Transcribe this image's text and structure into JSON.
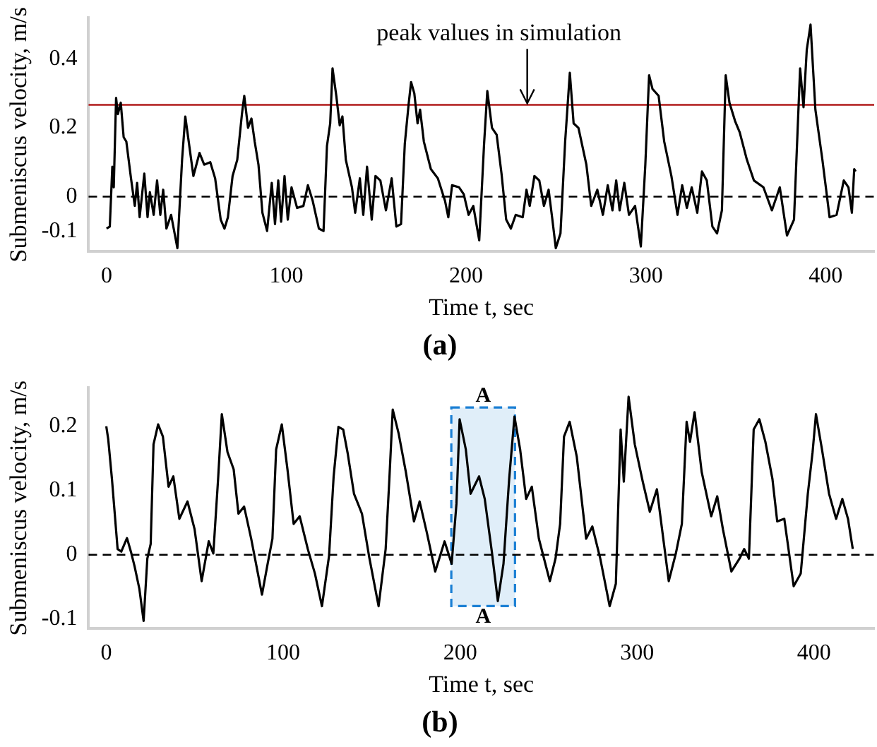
{
  "chart_data": [
    {
      "type": "line",
      "title": "(a)",
      "xlabel": "Time t, sec",
      "ylabel": "Submeniscus velocity, m/s",
      "xlim": [
        -10,
        427
      ],
      "xticks": [
        0,
        100,
        200,
        300,
        400
      ],
      "ylim": [
        -0.16,
        0.52
      ],
      "yticks": [
        -0.1,
        0,
        0.2,
        0.4
      ],
      "grid": false,
      "legend": false,
      "marker": "none",
      "line_style": "solid",
      "series": [
        {
          "color": "#000000",
          "x": [
            0,
            1.8,
            3.2,
            4,
            5.3,
            6.3,
            7.9,
            9.5,
            11,
            13.6,
            15.7,
            17,
            18.4,
            21,
            22.8,
            24.1,
            26.2,
            28.1,
            29.9,
            31.5,
            33.3,
            35.9,
            39.4,
            42,
            43.8,
            45.7,
            48.3,
            51.7,
            54.3,
            57.7,
            60.4,
            63.5,
            65.6,
            67.5,
            70.1,
            72.7,
            75.3,
            76.6,
            78.7,
            80.6,
            82.4,
            84.5,
            86.7,
            89.3,
            91.9,
            93.7,
            95.5,
            97.1,
            99,
            100.8,
            102.9,
            106,
            109.5,
            112,
            114.7,
            118.1,
            120.7,
            122.6,
            124.4,
            125.7,
            127.8,
            129.7,
            131.2,
            133.1,
            136.5,
            138.3,
            140.9,
            142.8,
            144.9,
            147.5,
            149.6,
            152.3,
            155.4,
            158.6,
            161.2,
            163.8,
            165.9,
            168,
            169.4,
            171.2,
            173,
            174.4,
            176.5,
            180.4,
            184.3,
            188.3,
            190.1,
            192.2,
            196.1,
            198.7,
            201.4,
            204,
            207.3,
            210,
            211.8,
            214.4,
            217,
            219.7,
            222.3,
            224.9,
            227.6,
            231.5,
            233.6,
            235.4,
            238,
            240.7,
            243.3,
            245.9,
            248,
            249.9,
            252.5,
            255.1,
            257.7,
            259.8,
            262.5,
            266.9,
            269.6,
            273,
            276.1,
            278.8,
            281.4,
            283.5,
            285.4,
            288,
            290.6,
            294,
            297.2,
            299.7,
            301.8,
            303.7,
            307.1,
            310.2,
            314.2,
            317.6,
            320.2,
            322.8,
            325.5,
            328.6,
            331.2,
            333.9,
            337,
            339.6,
            342.3,
            344.4,
            346.5,
            349.6,
            352.2,
            356.2,
            360.1,
            365.4,
            370.1,
            374.5,
            378.5,
            382.4,
            385.8,
            387.7,
            389.5,
            391.6,
            394.3,
            398.2,
            402.2,
            406.1,
            410.1,
            412.7,
            414.6,
            415.9,
            416.7
          ],
          "values": [
            -0.093,
            -0.087,
            0.087,
            0.027,
            0.287,
            0.24,
            0.273,
            0.173,
            0.16,
            0.053,
            -0.027,
            0.04,
            -0.06,
            0.067,
            -0.06,
            0.013,
            -0.053,
            0.047,
            -0.053,
            0.02,
            -0.093,
            -0.053,
            -0.15,
            0.107,
            0.233,
            0.16,
            0.06,
            0.127,
            0.093,
            0.1,
            0.053,
            -0.067,
            -0.093,
            -0.06,
            0.06,
            0.107,
            0.24,
            0.293,
            0.2,
            0.227,
            0.16,
            0.093,
            -0.047,
            -0.1,
            0.04,
            -0.08,
            0.047,
            -0.073,
            0.06,
            -0.067,
            0.027,
            -0.033,
            -0.027,
            0.033,
            -0.013,
            -0.093,
            -0.1,
            0.147,
            0.213,
            0.373,
            0.293,
            0.207,
            0.233,
            0.107,
            0.027,
            -0.047,
            0.053,
            -0.053,
            0.087,
            -0.067,
            0.06,
            0.047,
            -0.04,
            0.053,
            -0.087,
            -0.08,
            0.153,
            0.267,
            0.333,
            0.3,
            0.213,
            0.253,
            0.16,
            0.08,
            0.053,
            -0.013,
            -0.06,
            0.033,
            0.027,
            0.007,
            -0.053,
            -0.027,
            -0.127,
            0.153,
            0.307,
            0.2,
            0.18,
            0.067,
            -0.067,
            -0.093,
            -0.053,
            -0.06,
            0.02,
            -0.027,
            0.06,
            0.047,
            -0.027,
            0.02,
            -0.067,
            -0.15,
            -0.107,
            0.16,
            0.36,
            0.213,
            0.2,
            0.093,
            -0.027,
            0.02,
            -0.053,
            0.033,
            -0.04,
            0.047,
            -0.04,
            0.04,
            -0.053,
            -0.027,
            -0.145,
            0.093,
            0.353,
            0.313,
            0.293,
            0.16,
            0.06,
            -0.053,
            0.033,
            -0.033,
            0.027,
            -0.047,
            0.073,
            0.047,
            -0.087,
            -0.107,
            -0.04,
            0.353,
            0.273,
            0.22,
            0.187,
            0.107,
            0.047,
            0.027,
            -0.04,
            0.027,
            -0.113,
            -0.067,
            0.373,
            0.26,
            0.427,
            0.5,
            0.253,
            0.107,
            -0.06,
            -0.053,
            0.047,
            0.027,
            -0.047,
            0.08,
            0.073
          ]
        }
      ],
      "ref_lines": [
        {
          "axis": "y",
          "value": 0,
          "color": "#000000",
          "line_style": "dashed"
        },
        {
          "axis": "y",
          "value": 0.267,
          "color": "#b01a1a",
          "line_style": "solid"
        }
      ],
      "annotations": [
        {
          "text": "peak values in simulation",
          "x": 234,
          "y": 0.267
        }
      ]
    },
    {
      "type": "line",
      "title": "(b)",
      "xlabel": "Time t, sec",
      "ylabel": "Submeniscus velocity, m/s",
      "xlim": [
        -10,
        434
      ],
      "xticks": [
        0,
        100,
        200,
        300,
        400
      ],
      "ylim": [
        -0.115,
        0.26
      ],
      "yticks": [
        -0.1,
        0,
        0.1,
        0.2
      ],
      "grid": false,
      "legend": false,
      "marker": "none",
      "line_style": "solid",
      "series": [
        {
          "color": "#000000",
          "x": [
            0,
            1.1,
            3.2,
            6.4,
            8.5,
            11.7,
            13.9,
            16,
            18.7,
            21.1,
            23.2,
            25.1,
            26.7,
            29.3,
            32,
            35.2,
            37.9,
            41.3,
            45.9,
            49.9,
            53.9,
            57.9,
            60.5,
            63.2,
            65.3,
            68.5,
            72,
            74.7,
            77.9,
            81.9,
            88,
            91.2,
            93.9,
            96,
            99.2,
            102.4,
            105.9,
            109.3,
            113.9,
            117.9,
            121.9,
            125.9,
            128.5,
            131.2,
            133.9,
            136.5,
            140,
            144.5,
            148.5,
            153.9,
            157.9,
            160,
            161.9,
            165.3,
            169.3,
            173.9,
            177.1,
            181.3,
            185.9,
            191.2,
            195.2,
            197.9,
            199.7,
            203.2,
            205.9,
            210.7,
            213.9,
            217.9,
            221.3,
            224.5,
            227.7,
            230.7,
            233.9,
            237.3,
            240.5,
            244.5,
            250.7,
            253.9,
            256.5,
            258.7,
            261.9,
            265.9,
            271.2,
            274.7,
            279.2,
            284.5,
            288,
            290.7,
            292.5,
            295.2,
            298.7,
            303.2,
            307.2,
            311.2,
            317.9,
            321.9,
            325.3,
            328,
            329.9,
            332.5,
            336.5,
            341.9,
            345.3,
            348.5,
            353.3,
            357.9,
            360.5,
            363.2,
            365.9,
            369.1,
            372.5,
            376.5,
            379.2,
            383.2,
            388.5,
            392.5,
            396.5,
            399.2,
            401.1,
            404.5,
            408.5,
            412.5,
            416,
            419.2,
            421.9
          ],
          "values": [
            0.2,
            0.18,
            0.118,
            0.009,
            0.005,
            0.026,
            0.005,
            -0.018,
            -0.053,
            -0.103,
            -0.006,
            0.017,
            0.172,
            0.203,
            0.184,
            0.106,
            0.122,
            0.056,
            0.083,
            0.04,
            -0.041,
            0.021,
            0.002,
            0.118,
            0.219,
            0.16,
            0.133,
            0.064,
            0.075,
            0.025,
            -0.062,
            -0.014,
            0.025,
            0.164,
            0.203,
            0.133,
            0.048,
            0.06,
            0.009,
            -0.029,
            -0.08,
            -0.002,
            0.122,
            0.199,
            0.195,
            0.157,
            0.095,
            0.064,
            -0.002,
            -0.08,
            0.009,
            0.118,
            0.226,
            0.188,
            0.129,
            0.052,
            0.083,
            0.033,
            -0.026,
            0.021,
            -0.014,
            0.079,
            0.211,
            0.164,
            0.095,
            0.122,
            0.087,
            0.005,
            -0.072,
            -0.014,
            0.118,
            0.215,
            0.164,
            0.087,
            0.106,
            0.025,
            -0.041,
            -0.006,
            0.048,
            0.184,
            0.207,
            0.153,
            0.025,
            0.044,
            -0.006,
            -0.08,
            -0.045,
            0.195,
            0.114,
            0.246,
            0.172,
            0.114,
            0.067,
            0.102,
            -0.041,
            0.002,
            0.048,
            0.207,
            0.176,
            0.222,
            0.129,
            0.06,
            0.091,
            0.04,
            -0.026,
            -0.006,
            0.009,
            -0.006,
            0.195,
            0.211,
            0.176,
            0.118,
            0.052,
            0.056,
            -0.049,
            -0.029,
            0.095,
            0.16,
            0.219,
            0.164,
            0.095,
            0.056,
            0.087,
            0.056,
            0.009
          ]
        }
      ],
      "ref_lines": [
        {
          "axis": "y",
          "value": 0,
          "color": "#000000",
          "line_style": "dashed"
        }
      ],
      "bands": [
        {
          "axis": "x",
          "from": 195,
          "to": 231,
          "color": "#1a7fd4"
        }
      ],
      "annotations": [
        "A",
        "A"
      ]
    }
  ]
}
